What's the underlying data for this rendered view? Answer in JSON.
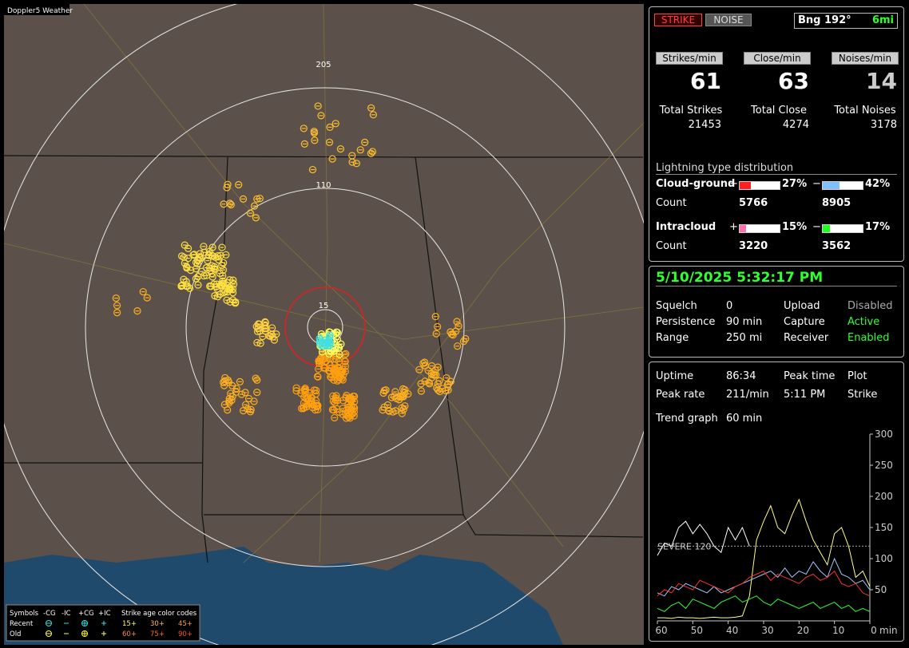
{
  "map": {
    "title": "Doppler5 Weather",
    "range_labels": [
      "205",
      "110",
      "15"
    ],
    "legend": {
      "header": [
        "Symbols",
        "-CG",
        "-IC",
        "+CG",
        "+IC",
        "Strike age color codes"
      ],
      "rows": [
        {
          "label": "Recent",
          "ages": [
            "15+",
            "30+",
            "45+"
          ]
        },
        {
          "label": "Old",
          "ages": [
            "60+",
            "75+",
            "90+"
          ]
        }
      ]
    }
  },
  "status": {
    "buttons": [
      "STRIKE",
      "NOISE"
    ],
    "bearing": "Bng 192°",
    "distance": "6mi",
    "rates": [
      {
        "label": "Strikes/min",
        "value": 61,
        "total_label": "Total Strikes",
        "total": 21453
      },
      {
        "label": "Close/min",
        "value": 63,
        "total_label": "Total Close",
        "total": 4274
      },
      {
        "label": "Noises/min",
        "value": 14,
        "total_label": "Total Noises",
        "total": 3178
      }
    ],
    "distribution": {
      "title": "Lightning type distribution",
      "rows": [
        {
          "label": "Cloud-ground",
          "signs": [
            "+",
            "−"
          ],
          "values": [
            27,
            42
          ],
          "value_labels": [
            "27%",
            "42%"
          ],
          "count_label": "Count",
          "counts": [
            5766,
            8905
          ]
        },
        {
          "label": "Intracloud",
          "signs": [
            "+",
            "−"
          ],
          "values": [
            15,
            17
          ],
          "value_labels": [
            "15%",
            "17%"
          ],
          "count_label": "Count",
          "counts": [
            3220,
            3562
          ]
        }
      ]
    }
  },
  "settings": {
    "datetime": "5/10/2025 5:32:17 PM",
    "items": [
      [
        "Squelch",
        "0"
      ],
      [
        "Persistence",
        "90 min"
      ],
      [
        "Range",
        "250 mi"
      ],
      [
        "Upload",
        "Disabled"
      ],
      [
        "Capture",
        "Active"
      ],
      [
        "Receiver",
        "Enabled"
      ]
    ]
  },
  "stats": {
    "items": [
      [
        "Uptime",
        "86:34"
      ],
      [
        "Peak time",
        "5:11 PM"
      ],
      [
        "Plot",
        "Strike"
      ],
      [
        "Peak rate",
        "211/min"
      ]
    ],
    "trend_label": "Trend graph",
    "trend_value": "60 min"
  },
  "chart_data": {
    "type": "line",
    "x": [
      60,
      58,
      56,
      54,
      52,
      50,
      48,
      46,
      44,
      42,
      40,
      38,
      36,
      34,
      32,
      30,
      28,
      26,
      24,
      22,
      20,
      18,
      16,
      14,
      12,
      10,
      8,
      6,
      4,
      2,
      0
    ],
    "xlim": [
      60,
      0
    ],
    "xticks": [
      60,
      50,
      40,
      30,
      20,
      10,
      0
    ],
    "x_unit": "min",
    "ylim": [
      0,
      300
    ],
    "yticks": [
      50,
      100,
      150,
      200,
      250,
      300
    ],
    "threshold": {
      "value": 120,
      "label": "SEVERE 120"
    },
    "series": [
      {
        "color": "#ffffff",
        "values": [
          105,
          125,
          120,
          150,
          160,
          140,
          155,
          140,
          120,
          110,
          150,
          130,
          150,
          120,
          null,
          null,
          null,
          null,
          null,
          null,
          null,
          null,
          null,
          null,
          null,
          null,
          null,
          null,
          null,
          null,
          null
        ]
      },
      {
        "color": "#ffff80",
        "values": [
          5,
          5,
          4,
          6,
          5,
          5,
          4,
          5,
          6,
          5,
          5,
          6,
          8,
          40,
          130,
          160,
          185,
          150,
          140,
          170,
          195,
          160,
          130,
          110,
          90,
          140,
          150,
          120,
          70,
          80,
          55
        ]
      },
      {
        "color": "#a0c8ff",
        "values": [
          45,
          40,
          55,
          50,
          60,
          55,
          50,
          45,
          55,
          45,
          50,
          55,
          60,
          65,
          70,
          75,
          80,
          70,
          85,
          70,
          80,
          75,
          95,
          80,
          70,
          100,
          75,
          70,
          60,
          65,
          50
        ]
      },
      {
        "color": "#ff3030",
        "values": [
          40,
          50,
          45,
          60,
          55,
          50,
          65,
          60,
          55,
          50,
          45,
          55,
          60,
          70,
          75,
          80,
          65,
          75,
          70,
          65,
          60,
          70,
          75,
          65,
          70,
          80,
          60,
          55,
          60,
          45,
          40
        ]
      },
      {
        "color": "#30ff30",
        "values": [
          20,
          15,
          25,
          30,
          20,
          35,
          30,
          25,
          20,
          30,
          35,
          40,
          30,
          35,
          40,
          30,
          25,
          35,
          30,
          25,
          20,
          25,
          30,
          20,
          25,
          30,
          20,
          25,
          15,
          20,
          15
        ]
      }
    ]
  }
}
